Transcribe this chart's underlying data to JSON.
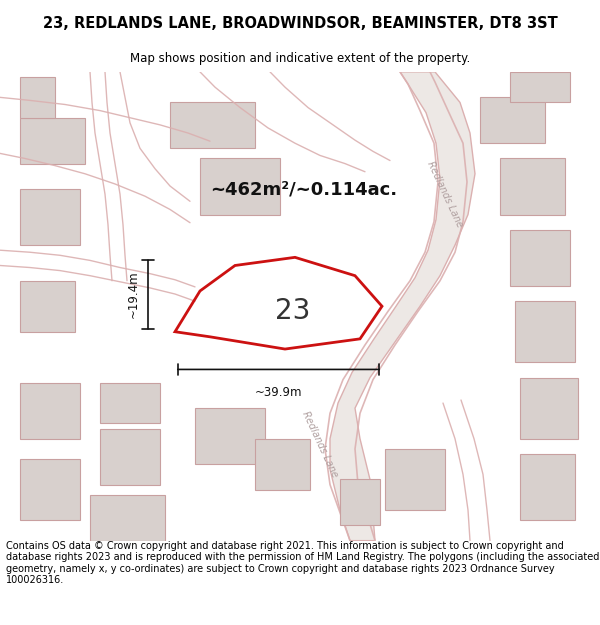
{
  "title": "23, REDLANDS LANE, BROADWINDSOR, BEAMINSTER, DT8 3ST",
  "subtitle": "Map shows position and indicative extent of the property.",
  "footer": "Contains OS data © Crown copyright and database right 2021. This information is subject to Crown copyright and database rights 2023 and is reproduced with the permission of HM Land Registry. The polygons (including the associated geometry, namely x, y co-ordinates) are subject to Crown copyright and database rights 2023 Ordnance Survey 100026316.",
  "area_text": "~462m²/~0.114ac.",
  "label": "23",
  "width_label": "~39.9m",
  "height_label": "~19.4m",
  "map_bg": "#f7f4f2",
  "road_color": "#dbb0b0",
  "road_fill": "#ede8e5",
  "building_fill": "#d8d0cd",
  "building_edge": "#c8a0a0",
  "highlight_color": "#cc1111",
  "title_fontsize": 10.5,
  "subtitle_fontsize": 8.5,
  "footer_fontsize": 7.0,
  "road_label_color": "#b0a0a0",
  "dim_color": "#111111"
}
